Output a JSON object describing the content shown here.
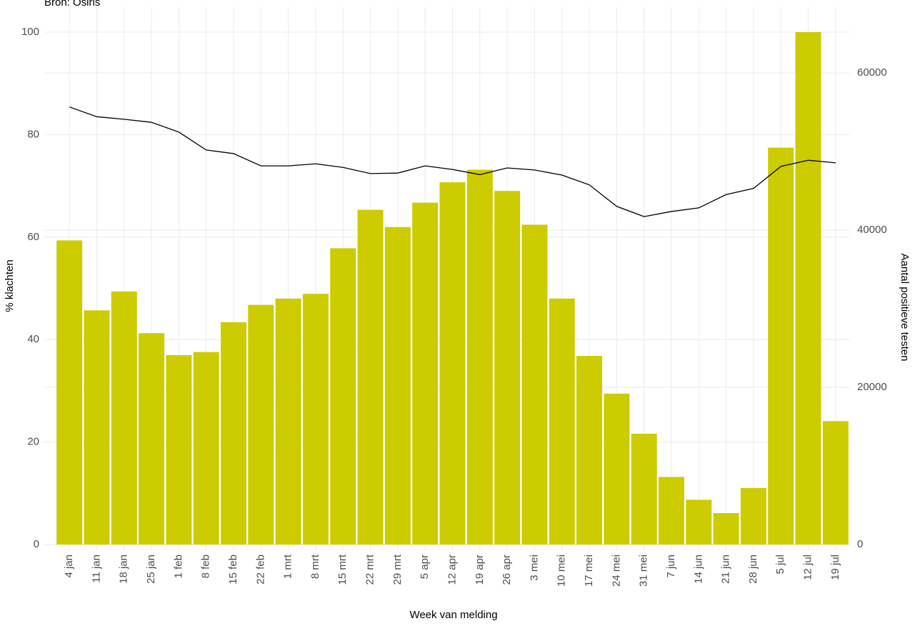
{
  "chart_data": {
    "type": "bar-line",
    "source": "Bron: Osiris",
    "x_label": "Week van melding",
    "y_label": "% klachten",
    "y2_label": "Aantal positieve testen",
    "categories": [
      "4 jan",
      "11 jan",
      "18 jan",
      "25 jan",
      "1 feb",
      "8 feb",
      "15 feb",
      "22 feb",
      "1 mrt",
      "8 mrt",
      "15 mrt",
      "22 mrt",
      "29 mrt",
      "5 apr",
      "12 apr",
      "19 apr",
      "26 apr",
      "3 mei",
      "10 mei",
      "17 mei",
      "24 mei",
      "31 mei",
      "7 jun",
      "14 jun",
      "21 jun",
      "28 jun",
      "5 jul",
      "12 jul",
      "19 jul"
    ],
    "series": [
      {
        "type": "bar",
        "axis": "y2",
        "color": "#cccc00",
        "values": [
          38700,
          29800,
          32200,
          26900,
          24100,
          24500,
          28300,
          30500,
          31300,
          31900,
          37700,
          42600,
          40400,
          43500,
          46100,
          47700,
          45000,
          40700,
          31300,
          24000,
          19200,
          14100,
          8600,
          5700,
          4000,
          7200,
          50500,
          65200,
          15700
        ]
      },
      {
        "type": "line",
        "axis": "y",
        "color": "#000000",
        "values": [
          85.4,
          83.5,
          83.0,
          82.4,
          80.5,
          77.0,
          76.3,
          73.9,
          73.9,
          74.3,
          73.6,
          72.4,
          72.5,
          73.9,
          73.2,
          72.2,
          73.5,
          73.1,
          72.1,
          70.2,
          66.0,
          64.0,
          65.0,
          65.7,
          68.3,
          69.5,
          73.8,
          75.0,
          74.5
        ]
      }
    ],
    "ylim": [
      0,
      100
    ],
    "yticks": [
      0,
      20,
      40,
      60,
      80,
      100
    ],
    "y2lim": [
      0,
      65200
    ],
    "y2ticks": [
      0,
      20000,
      40000,
      60000
    ],
    "grid": true
  }
}
